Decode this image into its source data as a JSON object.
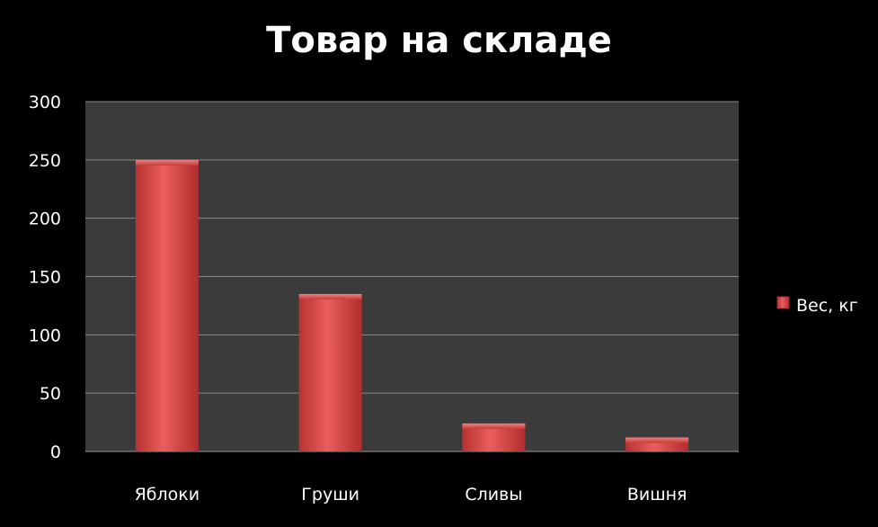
{
  "chart_data": {
    "type": "bar",
    "title": "Товар на складе",
    "categories": [
      "Яблоки",
      "Груши",
      "Сливы",
      "Вишня"
    ],
    "series": [
      {
        "name": "Вес, кг",
        "values": [
          250,
          135,
          24,
          12
        ]
      }
    ],
    "ylim": [
      0,
      300
    ],
    "yticks": [
      0,
      50,
      100,
      150,
      200,
      250,
      300
    ],
    "grid": true,
    "legend": "right",
    "colors": {
      "background": "#000000",
      "plot_area": "#3b3b3b",
      "bar": "#d94a4a",
      "grid": "#8a8a8a",
      "text": "#ffffff"
    }
  }
}
